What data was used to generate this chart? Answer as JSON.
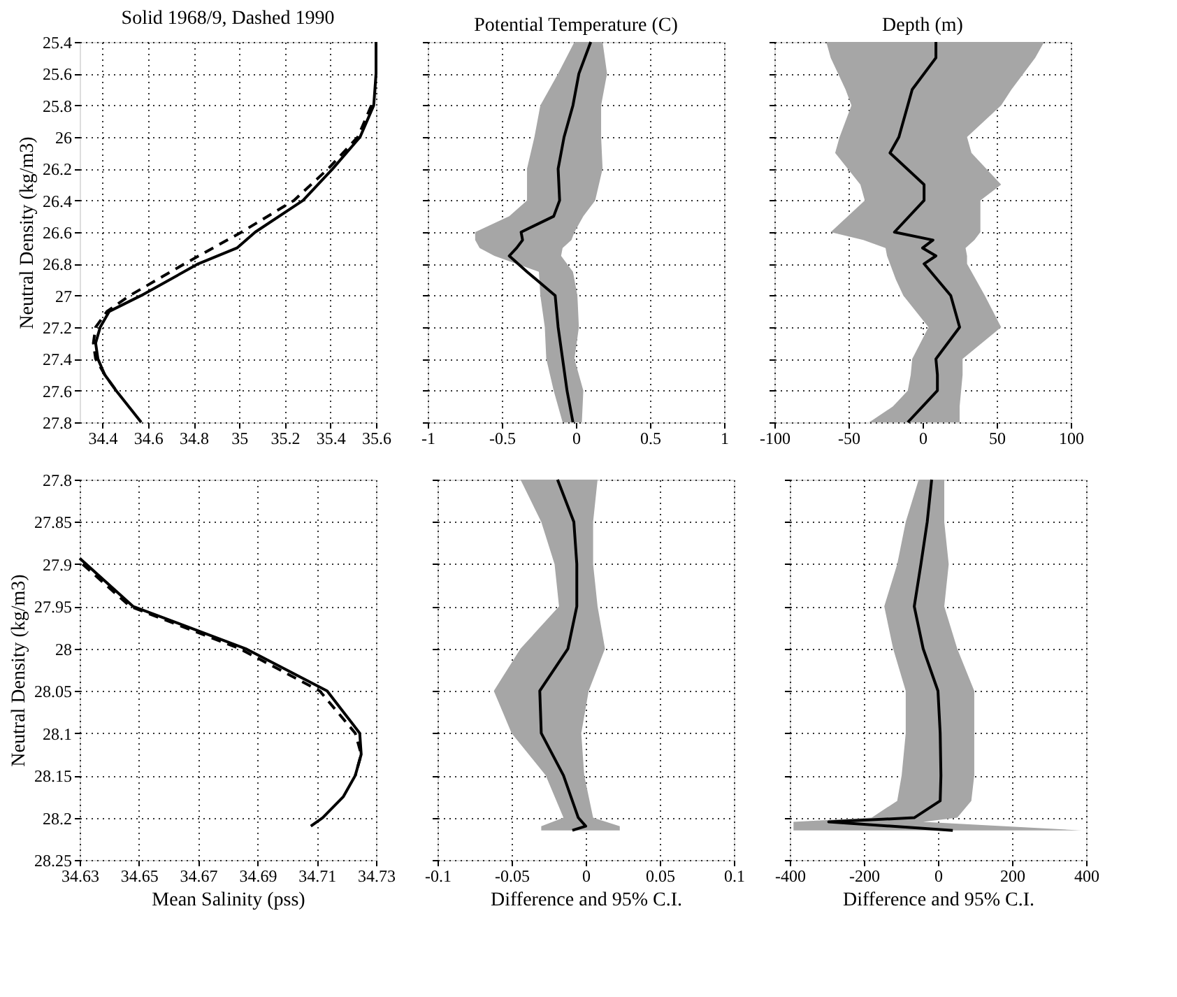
{
  "chart_data": [
    {
      "type": "line",
      "orientation": "horizontal",
      "title": "Solid 1968/9, Dashed 1990",
      "ylabel": "Neutral Density (kg/m3)",
      "xlim": [
        34.3,
        35.6
      ],
      "xticks": [
        34.4,
        34.6,
        34.8,
        35,
        35.2,
        35.4,
        35.6
      ],
      "ylim": [
        27.8,
        25.4
      ],
      "yticks": [
        25.4,
        25.6,
        25.8,
        26,
        26.2,
        26.4,
        26.6,
        26.8,
        27,
        27.2,
        27.4,
        27.6,
        27.8
      ],
      "grid": true,
      "series": [
        {
          "color": "#000000",
          "line_style": "solid",
          "x": [
            25.4,
            25.6,
            25.8,
            26.0,
            26.2,
            26.4,
            26.6,
            26.7,
            26.8,
            27.0,
            27.1,
            27.2,
            27.3,
            27.4,
            27.5,
            27.6,
            27.8
          ],
          "values": [
            35.6,
            35.6,
            35.59,
            35.53,
            35.41,
            35.28,
            35.07,
            34.99,
            34.82,
            34.57,
            34.43,
            34.39,
            34.37,
            34.38,
            34.41,
            34.46,
            34.57
          ]
        },
        {
          "color": "#000000",
          "line_style": "dashed",
          "x": [
            25.8,
            26.0,
            26.2,
            26.4,
            26.6,
            26.8,
            27.0,
            27.1,
            27.2,
            27.3,
            27.4,
            27.5,
            27.6
          ],
          "values": [
            35.58,
            35.52,
            35.39,
            35.24,
            35.01,
            34.76,
            34.52,
            34.42,
            34.37,
            34.36,
            34.37,
            34.41,
            34.46
          ]
        }
      ]
    },
    {
      "type": "line",
      "orientation": "horizontal",
      "title": "Potential Temperature (C)",
      "xlim": [
        -1,
        1
      ],
      "xticks": [
        -1,
        -0.5,
        0,
        0.5,
        1
      ],
      "ylim": [
        27.8,
        25.4
      ],
      "yticks": [
        25.4,
        25.6,
        25.8,
        26,
        26.2,
        26.4,
        26.6,
        26.8,
        27,
        27.2,
        27.4,
        27.6,
        27.8
      ],
      "grid": true,
      "tick_labels": "x",
      "series": [
        {
          "color": "#000000",
          "x": [
            25.4,
            25.6,
            25.8,
            26.0,
            26.2,
            26.4,
            26.5,
            26.6,
            26.65,
            26.7,
            26.75,
            26.85,
            27.0,
            27.2,
            27.4,
            27.6,
            27.8
          ],
          "values": [
            0.1,
            0.02,
            -0.02,
            -0.08,
            -0.12,
            -0.11,
            -0.15,
            -0.37,
            -0.36,
            -0.4,
            -0.45,
            -0.33,
            -0.14,
            -0.12,
            -0.09,
            -0.06,
            -0.02
          ],
          "lower": [
            -0.01,
            -0.12,
            -0.24,
            -0.28,
            -0.33,
            -0.33,
            -0.45,
            -0.68,
            -0.68,
            -0.65,
            -0.55,
            -0.25,
            -0.24,
            -0.21,
            -0.2,
            -0.15,
            -0.09
          ],
          "upper": [
            0.18,
            0.21,
            0.17,
            0.17,
            0.18,
            0.13,
            0.05,
            -0.01,
            -0.03,
            -0.09,
            -0.1,
            -0.02,
            0.01,
            0.02,
            -0.01,
            0.05,
            0.04
          ]
        }
      ]
    },
    {
      "type": "line",
      "orientation": "horizontal",
      "title": "Depth (m)",
      "xlim": [
        -100,
        100
      ],
      "xticks": [
        -100,
        -50,
        0,
        50,
        100
      ],
      "ylim": [
        27.8,
        25.4
      ],
      "yticks": [
        25.4,
        25.6,
        25.8,
        26,
        26.2,
        26.4,
        26.6,
        26.8,
        27,
        27.2,
        27.4,
        27.6,
        27.8
      ],
      "grid": true,
      "tick_labels": "x",
      "series": [
        {
          "color": "#000000",
          "x": [
            25.4,
            25.5,
            25.7,
            25.8,
            26.0,
            26.1,
            26.3,
            26.4,
            26.6,
            26.65,
            26.7,
            26.75,
            26.8,
            26.9,
            27.0,
            27.2,
            27.4,
            27.5,
            27.6,
            27.7,
            27.8
          ],
          "values": [
            9,
            9,
            -7,
            -10,
            -16,
            -22,
            1,
            1,
            -19,
            7,
            0,
            9,
            1,
            10,
            19,
            25,
            9,
            10,
            10,
            0,
            -10
          ],
          "lower": [
            -65,
            -62,
            -52,
            -48,
            -56,
            -59,
            -42,
            -39,
            -62,
            -40,
            -25,
            -24,
            -22,
            -18,
            -13,
            4,
            -7,
            -8,
            -10,
            -20,
            -36
          ],
          "upper": [
            82,
            76,
            60,
            53,
            30,
            33,
            53,
            39,
            39,
            35,
            29,
            30,
            30,
            36,
            42,
            53,
            27,
            27,
            26,
            25,
            25
          ]
        }
      ]
    },
    {
      "type": "line",
      "orientation": "horizontal",
      "xlabel": "Mean Salinity (pss)",
      "ylabel": "Neutral Density (kg/m3)",
      "xlim": [
        34.63,
        34.73
      ],
      "xticks": [
        34.63,
        34.65,
        34.67,
        34.69,
        34.71,
        34.73
      ],
      "ylim": [
        28.25,
        27.8
      ],
      "yticks": [
        27.8,
        27.85,
        27.9,
        27.95,
        28,
        28.05,
        28.1,
        28.15,
        28.2,
        28.25
      ],
      "grid": true,
      "series": [
        {
          "color": "#000000",
          "line_style": "solid",
          "x": [
            27.893,
            27.95,
            28.0,
            28.05,
            28.1,
            28.125,
            28.15,
            28.175,
            28.2,
            28.21
          ],
          "values": [
            34.63,
            34.648,
            34.686,
            34.7135,
            34.7245,
            34.725,
            34.723,
            34.719,
            34.712,
            34.708
          ]
        },
        {
          "color": "#000000",
          "line_style": "dashed",
          "x": [
            27.9,
            27.95,
            28.0,
            28.05,
            28.1,
            28.125,
            28.15
          ],
          "values": [
            34.631,
            34.647,
            34.684,
            34.711,
            34.723,
            34.725,
            34.723
          ]
        }
      ]
    },
    {
      "type": "line",
      "orientation": "horizontal",
      "xlabel": "Difference and 95% C.I.",
      "xlim": [
        -0.1,
        0.1
      ],
      "xticks": [
        -0.1,
        -0.05,
        0,
        0.05,
        0.1
      ],
      "ylim": [
        28.25,
        27.8
      ],
      "yticks": [
        27.8,
        27.85,
        27.9,
        27.95,
        28,
        28.05,
        28.1,
        28.15,
        28.2,
        28.25
      ],
      "grid": true,
      "tick_labels": "x",
      "series": [
        {
          "color": "#000000",
          "x": [
            27.8,
            27.85,
            27.9,
            27.95,
            28.0,
            28.05,
            28.1,
            28.15,
            28.2,
            28.21,
            28.215
          ],
          "values": [
            -0.019,
            -0.008,
            -0.006,
            -0.006,
            -0.012,
            -0.031,
            -0.03,
            -0.015,
            -0.005,
            0,
            -0.009
          ],
          "lower": [
            -0.044,
            -0.03,
            -0.021,
            -0.018,
            -0.044,
            -0.062,
            -0.05,
            -0.027,
            -0.015,
            -0.03,
            -0.03
          ],
          "upper": [
            0.008,
            0.005,
            0.005,
            0.008,
            0.013,
            0.002,
            -0.003,
            -0.001,
            0.005,
            0.023,
            0.023
          ]
        }
      ]
    },
    {
      "type": "line",
      "orientation": "horizontal",
      "xlabel": "Difference and 95% C.I.",
      "xlim": [
        -400,
        400
      ],
      "xticks": [
        -400,
        -200,
        0,
        200,
        400
      ],
      "ylim": [
        28.25,
        27.8
      ],
      "yticks": [
        27.8,
        27.85,
        27.9,
        27.95,
        28,
        28.05,
        28.1,
        28.15,
        28.2,
        28.25
      ],
      "grid": true,
      "tick_labels": "x",
      "series": [
        {
          "color": "#000000",
          "x": [
            27.8,
            27.85,
            27.9,
            27.95,
            28.0,
            28.05,
            28.1,
            28.15,
            28.18,
            28.2,
            28.205,
            28.215
          ],
          "values": [
            -17,
            -29,
            -46,
            -64,
            -40,
            0,
            6,
            8,
            6,
            -64,
            -295,
            40
          ],
          "lower": [
            -52,
            -87,
            -110,
            -145,
            -121,
            -87,
            -87,
            -98,
            -110,
            -179,
            -390,
            -390
          ],
          "upper": [
            17,
            17,
            29,
            17,
            52,
            98,
            98,
            98,
            90,
            52,
            -40,
            387
          ]
        }
      ]
    }
  ]
}
